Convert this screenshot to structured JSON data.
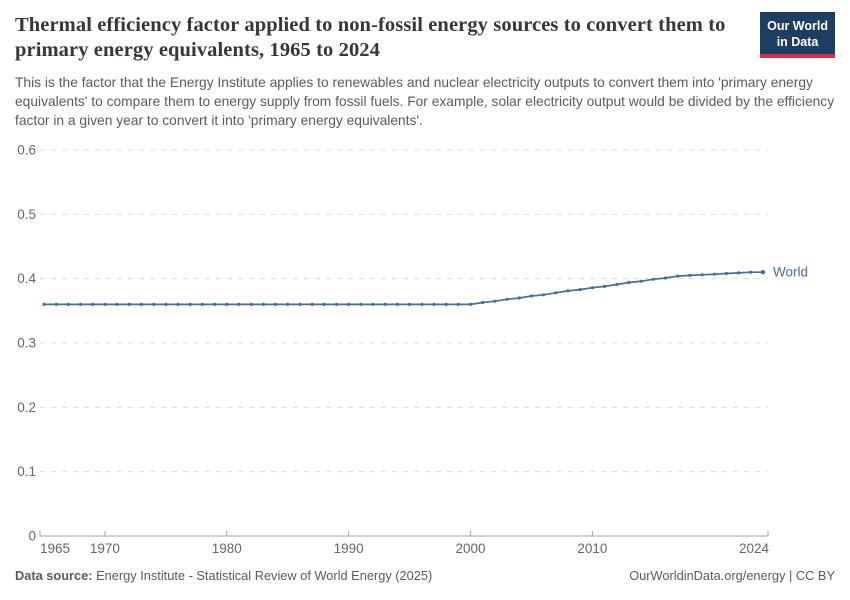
{
  "header": {
    "title": "Thermal efficiency factor applied to non-fossil energy sources to convert them to primary energy equivalents, 1965 to 2024",
    "subtitle": "This is the factor that the Energy Institute applies to renewables and nuclear electricity outputs to convert them into 'primary energy equivalents' to compare them to energy supply from fossil fuels. For example, solar electricity output would be divided by the efficiency factor in a given year to convert it into 'primary energy equivalents'.",
    "logo": {
      "line1": "Our World",
      "line2": "in Data",
      "bg_color": "#1d3d63",
      "accent_color": "#dc2e44"
    }
  },
  "chart_data": {
    "type": "line",
    "title": "Thermal efficiency factor applied to non-fossil energy sources to convert them to primary energy equivalents",
    "xlabel": "",
    "ylabel": "",
    "xlim": [
      1965,
      2024
    ],
    "ylim": [
      0,
      0.6
    ],
    "x_ticks": [
      1965,
      1970,
      1980,
      1990,
      2000,
      2010,
      2024
    ],
    "y_ticks": [
      0,
      0.1,
      0.2,
      0.3,
      0.4,
      0.5,
      0.6
    ],
    "grid": "horizontal-dashed",
    "legend_position": "end-of-line-label",
    "series": [
      {
        "name": "World",
        "color": "#4C6A9C",
        "x": [
          1965,
          1966,
          1967,
          1968,
          1969,
          1970,
          1971,
          1972,
          1973,
          1974,
          1975,
          1976,
          1977,
          1978,
          1979,
          1980,
          1981,
          1982,
          1983,
          1984,
          1985,
          1986,
          1987,
          1988,
          1989,
          1990,
          1991,
          1992,
          1993,
          1994,
          1995,
          1996,
          1997,
          1998,
          1999,
          2000,
          2001,
          2002,
          2003,
          2004,
          2005,
          2006,
          2007,
          2008,
          2009,
          2010,
          2011,
          2012,
          2013,
          2014,
          2015,
          2016,
          2017,
          2018,
          2019,
          2020,
          2021,
          2022,
          2023,
          2024
        ],
        "values": [
          0.36,
          0.36,
          0.36,
          0.36,
          0.36,
          0.36,
          0.36,
          0.36,
          0.36,
          0.36,
          0.36,
          0.36,
          0.36,
          0.36,
          0.36,
          0.36,
          0.36,
          0.36,
          0.36,
          0.36,
          0.36,
          0.36,
          0.36,
          0.36,
          0.36,
          0.36,
          0.36,
          0.36,
          0.36,
          0.36,
          0.36,
          0.36,
          0.36,
          0.36,
          0.36,
          0.36,
          0.363,
          0.365,
          0.368,
          0.37,
          0.373,
          0.375,
          0.378,
          0.381,
          0.383,
          0.386,
          0.388,
          0.391,
          0.394,
          0.396,
          0.399,
          0.401,
          0.404,
          0.405,
          0.406,
          0.407,
          0.408,
          0.409,
          0.41,
          0.41
        ]
      }
    ],
    "colors": {
      "gridline": "#dcdcdc",
      "axis": "#a5a5a5",
      "tick_label": "#666666"
    }
  },
  "footer": {
    "datasource_label": "Data source:",
    "datasource": "Energy Institute - Statistical Review of World Energy (2025)",
    "attribution": "OurWorldinData.org/energy | CC BY"
  }
}
